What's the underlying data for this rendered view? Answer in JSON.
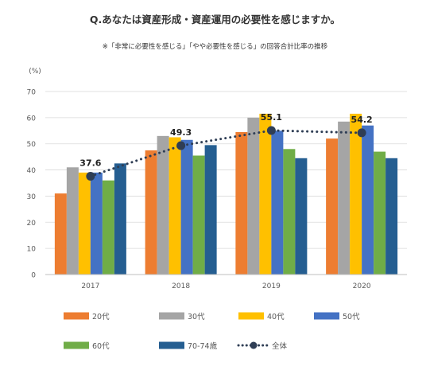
{
  "chart_data": {
    "type": "bar",
    "title": "Q.あなたは資産形成・資産運用の必要性を感じますか。",
    "subtitle": "※「非常に必要性を感じる」「やや必要性を感じる」の回答合計比率の推移",
    "ylabel": "(%)",
    "xlabel": "",
    "ylim": [
      0,
      70
    ],
    "yticks": [
      0,
      10,
      20,
      30,
      40,
      50,
      60,
      70
    ],
    "grid": true,
    "legend_position": "bottom",
    "categories": [
      "2017",
      "2018",
      "2019",
      "2020"
    ],
    "series": [
      {
        "name": "20代",
        "color": "#ED7D31",
        "values": [
          31,
          47.5,
          54.5,
          52
        ]
      },
      {
        "name": "30代",
        "color": "#A5A5A5",
        "values": [
          41,
          53,
          60,
          58.5
        ]
      },
      {
        "name": "40代",
        "color": "#FFC000",
        "values": [
          39,
          52.5,
          61.5,
          61.5
        ]
      },
      {
        "name": "50代",
        "color": "#4472C4",
        "values": [
          39,
          51.5,
          55,
          57
        ]
      },
      {
        "name": "60代",
        "color": "#70AD47",
        "values": [
          36,
          45.5,
          48,
          47
        ]
      },
      {
        "name": "70-74歳",
        "color": "#255E91",
        "values": [
          42.5,
          49.5,
          44.5,
          44.5
        ]
      }
    ],
    "line_series": {
      "name": "全体",
      "color": "#2F3E55",
      "style": "dotted",
      "values": [
        37.6,
        49.3,
        55.1,
        54.2
      ],
      "labels": [
        "37.6",
        "49.3",
        "55.1",
        "54.2"
      ]
    }
  }
}
